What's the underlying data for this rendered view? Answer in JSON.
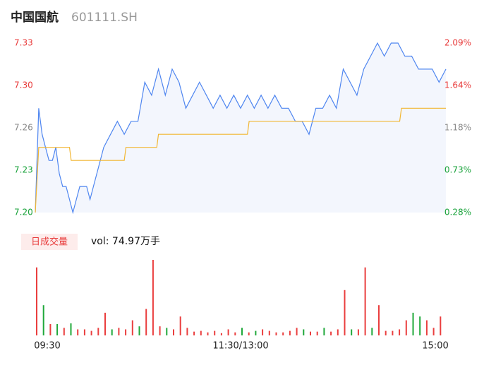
{
  "chart_data": [
    {
      "type": "line",
      "title": "中国国航",
      "subtitle": "601111.SH",
      "xlim": [
        0,
        240
      ],
      "ylim": [
        7.2,
        7.33
      ],
      "yticks": [
        {
          "value": 7.2,
          "label": "7.20"
        },
        {
          "value": 7.2325,
          "label": "7.23"
        },
        {
          "value": 7.265,
          "label": "7.26"
        },
        {
          "value": 7.2975,
          "label": "7.30"
        },
        7.33
      ],
      "ytick_colors": [
        "#18a23a",
        "#18a23a",
        "#888888",
        "#e83a3a",
        "#e83a3a"
      ],
      "y2lim": [
        0.28,
        2.09
      ],
      "y2ticks": [
        {
          "value": 0.28,
          "label": "0.28%"
        },
        {
          "value": 0.7325,
          "label": "0.73%"
        },
        {
          "value": 1.185,
          "label": "1.18%"
        },
        {
          "value": 1.6375,
          "label": "1.64%"
        },
        {
          "value": 2.09,
          "label": "2.09%"
        }
      ],
      "series": [
        {
          "color": "#4f86f0",
          "fill": "#f3f6fd",
          "x": [
            0,
            2,
            4,
            6,
            8,
            10,
            12,
            14,
            16,
            18,
            20,
            22,
            24,
            26,
            28,
            30,
            32,
            34,
            36,
            40,
            44,
            48,
            52,
            56,
            60,
            64,
            68,
            72,
            76,
            80,
            84,
            88,
            92,
            96,
            100,
            104,
            108,
            112,
            116,
            120,
            124,
            128,
            132,
            136,
            140,
            144,
            148,
            152,
            156,
            160,
            164,
            168,
            172,
            176,
            180,
            184,
            188,
            192,
            196,
            200,
            204,
            208,
            212,
            216,
            220,
            224,
            228,
            232,
            236,
            240
          ],
          "values": [
            7.2,
            7.28,
            7.26,
            7.25,
            7.24,
            7.24,
            7.25,
            7.23,
            7.22,
            7.22,
            7.21,
            7.2,
            7.21,
            7.22,
            7.22,
            7.22,
            7.21,
            7.22,
            7.23,
            7.25,
            7.26,
            7.27,
            7.26,
            7.27,
            7.27,
            7.3,
            7.29,
            7.31,
            7.29,
            7.31,
            7.3,
            7.28,
            7.29,
            7.3,
            7.29,
            7.28,
            7.29,
            7.28,
            7.29,
            7.28,
            7.29,
            7.28,
            7.29,
            7.28,
            7.29,
            7.28,
            7.28,
            7.27,
            7.27,
            7.26,
            7.28,
            7.28,
            7.29,
            7.28,
            7.31,
            7.3,
            7.29,
            7.31,
            7.32,
            7.33,
            7.32,
            7.33,
            7.33,
            7.32,
            7.32,
            7.31,
            7.31,
            7.31,
            7.3,
            7.31
          ]
        },
        {
          "color": "#f2b632",
          "x": [
            0,
            2,
            20,
            21,
            52,
            53,
            71,
            72,
            124,
            125,
            213,
            214,
            240
          ],
          "values": [
            7.2,
            7.25,
            7.25,
            7.24,
            7.24,
            7.25,
            7.25,
            7.26,
            7.26,
            7.27,
            7.27,
            7.28,
            7.28
          ]
        }
      ]
    },
    {
      "type": "bar",
      "title": "日成交量",
      "annotation": "vol: 74.97万手",
      "xlim": [
        0,
        240
      ],
      "ylim": [
        0,
        100
      ],
      "xticks": [
        {
          "value": 0,
          "label": "09:30"
        },
        {
          "value": 120,
          "label": "11:30/13:00"
        },
        {
          "value": 240,
          "label": "15:00"
        }
      ],
      "x": [
        0,
        4,
        8,
        12,
        16,
        20,
        24,
        28,
        32,
        36,
        40,
        44,
        48,
        52,
        56,
        60,
        64,
        68,
        72,
        76,
        80,
        84,
        88,
        92,
        96,
        100,
        104,
        108,
        112,
        116,
        120,
        124,
        128,
        132,
        136,
        140,
        144,
        148,
        152,
        156,
        160,
        164,
        168,
        172,
        176,
        180,
        184,
        188,
        192,
        196,
        200,
        204,
        208,
        212,
        216,
        220,
        224,
        228,
        232,
        236
      ],
      "values": [
        90,
        40,
        15,
        15,
        10,
        16,
        8,
        8,
        6,
        10,
        30,
        8,
        10,
        8,
        20,
        12,
        35,
        100,
        12,
        10,
        8,
        25,
        10,
        5,
        6,
        4,
        6,
        3,
        8,
        4,
        10,
        4,
        6,
        8,
        6,
        4,
        4,
        6,
        10,
        8,
        5,
        5,
        10,
        5,
        8,
        60,
        8,
        8,
        90,
        10,
        40,
        6,
        6,
        8,
        20,
        30,
        25,
        20,
        10,
        25
      ],
      "colors": [
        "#ea3e3e",
        "#1fa83a",
        "#ea3e3e",
        "#1fa83a",
        "#ea3e3e",
        "#1fa83a",
        "#ea3e3e",
        "#ea3e3e",
        "#ea3e3e",
        "#ea3e3e",
        "#ea3e3e",
        "#1fa83a",
        "#ea3e3e",
        "#ea3e3e",
        "#ea3e3e",
        "#1fa83a",
        "#ea3e3e",
        "#ea3e3e",
        "#ea3e3e",
        "#1fa83a",
        "#ea3e3e",
        "#ea3e3e",
        "#ea3e3e",
        "#ea3e3e",
        "#ea3e3e",
        "#ea3e3e",
        "#ea3e3e",
        "#ea3e3e",
        "#ea3e3e",
        "#ea3e3e",
        "#1fa83a",
        "#ea3e3e",
        "#1fa83a",
        "#ea3e3e",
        "#ea3e3e",
        "#ea3e3e",
        "#ea3e3e",
        "#ea3e3e",
        "#ea3e3e",
        "#1fa83a",
        "#ea3e3e",
        "#ea3e3e",
        "#1fa83a",
        "#ea3e3e",
        "#ea3e3e",
        "#ea3e3e",
        "#1fa83a",
        "#ea3e3e",
        "#ea3e3e",
        "#1fa83a",
        "#ea3e3e",
        "#ea3e3e",
        "#ea3e3e",
        "#ea3e3e",
        "#ea3e3e",
        "#1fa83a",
        "#1fa83a",
        "#ea3e3e",
        "#ea3e3e",
        "#ea3e3e"
      ]
    }
  ]
}
